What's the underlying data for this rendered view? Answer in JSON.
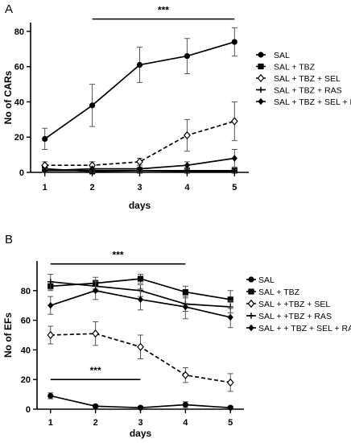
{
  "chart_data": [
    {
      "panel": "A",
      "type": "line",
      "xlabel": "days",
      "ylabel": "No of CARs",
      "x": [
        1,
        2,
        3,
        4,
        5
      ],
      "xlim": [
        0.7,
        5.3
      ],
      "ylim": [
        0,
        85
      ],
      "yticks": [
        0,
        20,
        40,
        60,
        80
      ],
      "grid": false,
      "legend": "right",
      "series": [
        {
          "name": "SAL",
          "marker": "filled-circle",
          "dashed": false,
          "values": [
            19,
            38,
            61,
            66,
            74
          ],
          "error": [
            6,
            12,
            10,
            10,
            8
          ]
        },
        {
          "name": "SAL + TBZ",
          "marker": "filled-square",
          "dashed": false,
          "values": [
            2,
            0.5,
            1,
            1,
            1
          ],
          "error": [
            1,
            1,
            1,
            1,
            1
          ]
        },
        {
          "name": "SAL + TBZ + SEL",
          "marker": "open-diamond",
          "dashed": true,
          "values": [
            4,
            4,
            6,
            21,
            29
          ],
          "error": [
            2,
            2,
            2,
            9,
            11
          ]
        },
        {
          "name": "SAL + TBZ + RAS",
          "marker": "plus",
          "dashed": false,
          "values": [
            1,
            1,
            1,
            0.5,
            0.5
          ],
          "error": [
            1,
            1,
            1,
            1,
            1
          ]
        },
        {
          "name": "SAL + TBZ + SEL + RAS",
          "marker": "filled-diamond",
          "dashed": false,
          "values": [
            1,
            2,
            2,
            4,
            8
          ],
          "error": [
            1,
            1,
            1,
            2,
            5
          ]
        }
      ],
      "annotations": [
        {
          "text": "***",
          "from_x": 2,
          "to_x": 5,
          "y": 87
        }
      ]
    },
    {
      "panel": "B",
      "type": "line",
      "xlabel": "days",
      "ylabel": "No of EFs",
      "x": [
        1,
        2,
        3,
        4,
        5
      ],
      "xlim": [
        0.7,
        5.3
      ],
      "ylim": [
        0,
        100
      ],
      "yticks": [
        0,
        20,
        40,
        60,
        80
      ],
      "grid": false,
      "legend": "right",
      "series": [
        {
          "name": "SAL",
          "marker": "filled-circle",
          "dashed": false,
          "values": [
            9,
            2,
            1,
            3,
            1
          ],
          "error": [
            2,
            1,
            1,
            2,
            1
          ]
        },
        {
          "name": "SAL + TBZ",
          "marker": "filled-square",
          "dashed": false,
          "values": [
            83,
            85,
            88,
            79,
            74
          ],
          "error": [
            3,
            4,
            3,
            4,
            6
          ]
        },
        {
          "name": "SAL + +TBZ + SEL",
          "marker": "open-diamond",
          "dashed": true,
          "values": [
            50,
            51,
            42,
            23,
            18
          ],
          "error": [
            6,
            8,
            8,
            5,
            6
          ]
        },
        {
          "name": "SAL + +TBZ + RAS",
          "marker": "plus",
          "dashed": false,
          "values": [
            86,
            83,
            80,
            71,
            69
          ],
          "error": [
            5,
            4,
            4,
            5,
            4
          ]
        },
        {
          "name": "SAL + + TBZ + SEL + RAS",
          "marker": "filled-diamond",
          "dashed": false,
          "values": [
            70,
            80,
            74,
            69,
            62
          ],
          "error": [
            6,
            6,
            7,
            8,
            7
          ]
        }
      ],
      "annotations": [
        {
          "text": "***",
          "from_x": 1,
          "to_x": 4,
          "y": 98
        },
        {
          "text": "***",
          "from_x": 1,
          "to_x": 3,
          "y": 20
        }
      ]
    }
  ]
}
